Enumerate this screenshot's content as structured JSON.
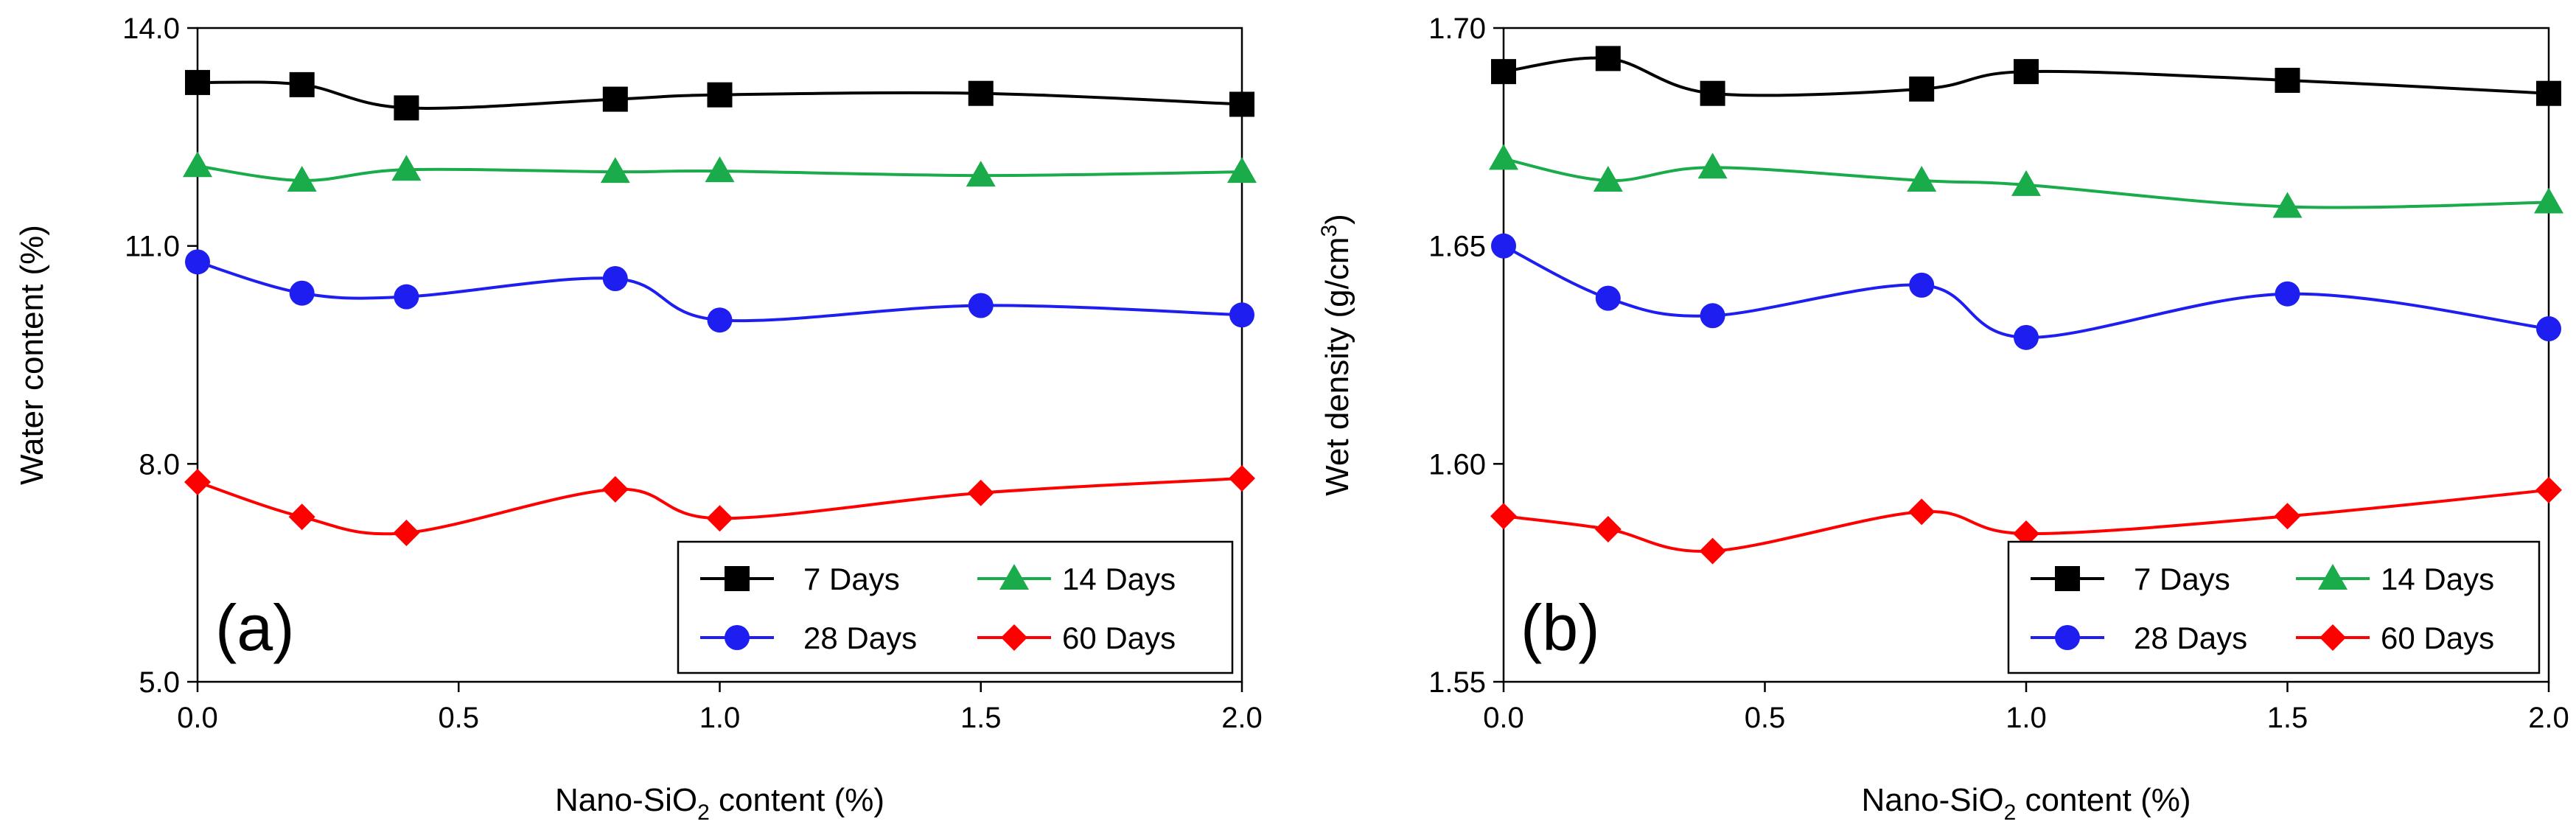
{
  "chart_data": [
    {
      "type": "line",
      "panel_label": "(a)",
      "xlabel": {
        "main": "Nano-SiO",
        "sub": "2",
        "rest": " content (%)"
      },
      "ylabel": {
        "main": "Water content (%)"
      },
      "xlim": [
        0,
        2
      ],
      "ylim": [
        5,
        14
      ],
      "xticks": [
        0,
        0.5,
        1,
        1.5,
        2
      ],
      "xtick_labels": [
        "0.0",
        "0.5",
        "1.0",
        "1.5",
        "2.0"
      ],
      "yticks": [
        5,
        8,
        11,
        14
      ],
      "ytick_labels": [
        "5.0",
        "8.0",
        "11.0",
        "14.0"
      ],
      "x": [
        0,
        0.2,
        0.4,
        0.8,
        1.0,
        1.5,
        2.0
      ],
      "series": [
        {
          "name": "7 Days",
          "color": "#000000",
          "marker": "square",
          "values": [
            13.25,
            13.22,
            12.9,
            13.02,
            13.08,
            13.1,
            12.95
          ]
        },
        {
          "name": "14 Days",
          "color": "#1aab4b",
          "marker": "triangle",
          "values": [
            12.1,
            11.9,
            12.05,
            12.02,
            12.03,
            11.97,
            12.02
          ]
        },
        {
          "name": "28 Days",
          "color": "#1e1ef0",
          "marker": "circle",
          "values": [
            10.78,
            10.35,
            10.3,
            10.55,
            9.98,
            10.18,
            10.05
          ]
        },
        {
          "name": "60 Days",
          "color": "#ff0000",
          "marker": "diamond",
          "values": [
            7.75,
            7.27,
            7.05,
            7.65,
            7.25,
            7.6,
            7.8
          ]
        }
      ],
      "legend": {
        "position": "bottom-right",
        "columns": 2,
        "order": [
          "7 Days",
          "14 Days",
          "28 Days",
          "60 Days"
        ]
      }
    },
    {
      "type": "line",
      "panel_label": "(b)",
      "xlabel": {
        "main": "Nano-SiO",
        "sub": "2",
        "rest": " content (%)"
      },
      "ylabel": {
        "main": "Wet density (g/cm",
        "sup": "3",
        "rest": ")"
      },
      "xlim": [
        0,
        2
      ],
      "ylim": [
        1.55,
        1.7
      ],
      "xticks": [
        0,
        0.5,
        1,
        1.5,
        2
      ],
      "xtick_labels": [
        "0.0",
        "0.5",
        "1.0",
        "1.5",
        "2.0"
      ],
      "yticks": [
        1.55,
        1.6,
        1.65,
        1.7
      ],
      "ytick_labels": [
        "1.55",
        "1.60",
        "1.65",
        "1.70"
      ],
      "x": [
        0,
        0.2,
        0.4,
        0.8,
        1.0,
        1.5,
        2.0
      ],
      "series": [
        {
          "name": "7 Days",
          "color": "#000000",
          "marker": "square",
          "values": [
            1.69,
            1.693,
            1.685,
            1.686,
            1.69,
            1.688,
            1.685
          ]
        },
        {
          "name": "14 Days",
          "color": "#1aab4b",
          "marker": "triangle",
          "values": [
            1.67,
            1.665,
            1.668,
            1.665,
            1.664,
            1.659,
            1.66
          ]
        },
        {
          "name": "28 Days",
          "color": "#1e1ef0",
          "marker": "circle",
          "values": [
            1.65,
            1.638,
            1.634,
            1.641,
            1.629,
            1.639,
            1.631
          ]
        },
        {
          "name": "60 Days",
          "color": "#ff0000",
          "marker": "diamond",
          "values": [
            1.588,
            1.585,
            1.58,
            1.589,
            1.584,
            1.588,
            1.594
          ]
        }
      ],
      "legend": {
        "position": "bottom-right",
        "columns": 2,
        "order": [
          "7 Days",
          "14 Days",
          "28 Days",
          "60 Days"
        ]
      }
    }
  ]
}
